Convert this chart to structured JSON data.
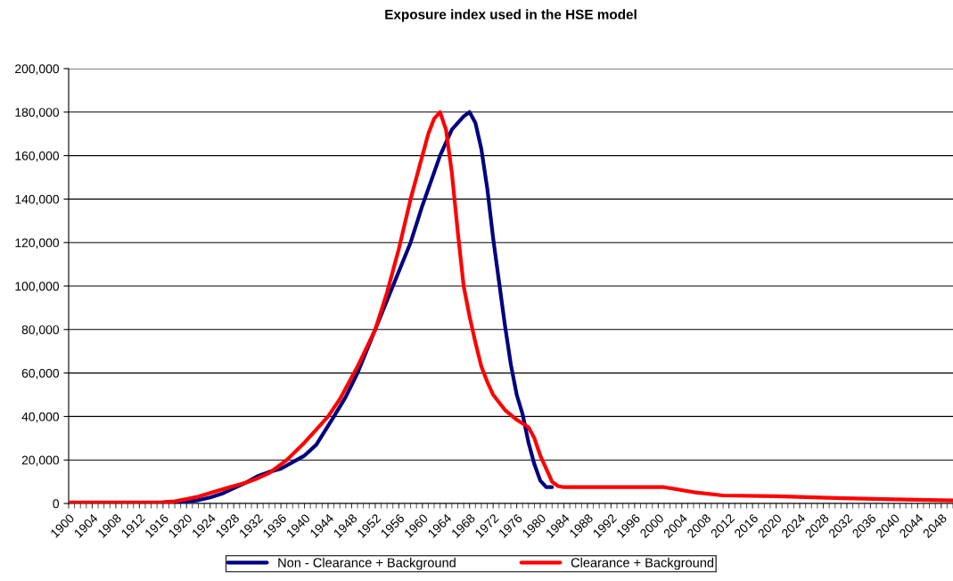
{
  "chart_data": {
    "type": "line",
    "title": "Exposure index used in the HSE model",
    "series": [
      {
        "name": "Non - Clearance + Background",
        "color": "#000080",
        "x": [
          1916,
          1918,
          1920,
          1922,
          1924,
          1926,
          1928,
          1930,
          1932,
          1934,
          1936,
          1938,
          1940,
          1942,
          1945,
          1947,
          1949,
          1952,
          1955,
          1958,
          1960,
          1963,
          1965,
          1967,
          1968,
          1969,
          1970,
          1971,
          1972,
          1973,
          1974,
          1975,
          1976,
          1977,
          1978,
          1979,
          1980,
          1981,
          1982
        ],
        "values": [
          500,
          600,
          900,
          1500,
          2800,
          4500,
          7000,
          9500,
          12500,
          14500,
          16000,
          19000,
          22000,
          27000,
          40000,
          49000,
          60000,
          80000,
          100000,
          120000,
          137000,
          160000,
          172000,
          178000,
          180000,
          175000,
          163000,
          145000,
          122000,
          102000,
          82000,
          64000,
          50000,
          41000,
          28000,
          18000,
          10500,
          7500,
          7500
        ]
      },
      {
        "name": "Clearance + Background",
        "color": "#ff0000",
        "x": [
          1900,
          1910,
          1916,
          1918,
          1920,
          1922,
          1924,
          1926,
          1928,
          1930,
          1932,
          1934,
          1937,
          1940,
          1942,
          1944,
          1946,
          1949,
          1952,
          1954,
          1956,
          1958,
          1960,
          1961,
          1962,
          1963,
          1964,
          1965,
          1966,
          1967,
          1968,
          1969,
          1970,
          1971,
          1972,
          1974,
          1976,
          1978,
          1979,
          1980,
          1981,
          1982,
          1983,
          1984,
          1990,
          2001,
          2006,
          2011,
          2020,
          2030,
          2040,
          2050
        ],
        "values": [
          500,
          500,
          600,
          1000,
          2000,
          3200,
          4800,
          6500,
          8000,
          9500,
          11500,
          14000,
          20000,
          28000,
          34000,
          40000,
          48000,
          63000,
          80000,
          97000,
          117000,
          140000,
          160000,
          170000,
          177000,
          180000,
          172000,
          152000,
          125000,
          100000,
          86000,
          74000,
          63000,
          56000,
          50000,
          43000,
          38500,
          35000,
          30000,
          22000,
          16000,
          10000,
          8000,
          7500,
          7500,
          7500,
          5200,
          3700,
          3300,
          2500,
          1900,
          1400
        ]
      }
    ],
    "xlim": [
      1900,
      2050
    ],
    "xticks": [
      {
        "value": 1900,
        "label": "1900"
      },
      {
        "value": 1904,
        "label": "1904"
      },
      {
        "value": 1908,
        "label": "1908"
      },
      {
        "value": 1912,
        "label": "1912"
      },
      {
        "value": 1916,
        "label": "1916"
      },
      {
        "value": 1920,
        "label": "1920"
      },
      {
        "value": 1924,
        "label": "1924"
      },
      {
        "value": 1928,
        "label": "1928"
      },
      {
        "value": 1932,
        "label": "1932"
      },
      {
        "value": 1936,
        "label": "1936"
      },
      {
        "value": 1940,
        "label": "1940"
      },
      {
        "value": 1944,
        "label": "1944"
      },
      {
        "value": 1948,
        "label": "1948"
      },
      {
        "value": 1952,
        "label": "1952"
      },
      {
        "value": 1956,
        "label": "1956"
      },
      {
        "value": 1960,
        "label": "1960"
      },
      {
        "value": 1964,
        "label": "1964"
      },
      {
        "value": 1968,
        "label": "1968"
      },
      {
        "value": 1972,
        "label": "1972"
      },
      {
        "value": 1976,
        "label": "1976"
      },
      {
        "value": 1980,
        "label": "1980"
      },
      {
        "value": 1984,
        "label": "1984"
      },
      {
        "value": 1988,
        "label": "1988"
      },
      {
        "value": 1992,
        "label": "1992"
      },
      {
        "value": 1996,
        "label": "1996"
      },
      {
        "value": 2000,
        "label": "2000"
      },
      {
        "value": 2004,
        "label": "2004"
      },
      {
        "value": 2008,
        "label": "2008"
      },
      {
        "value": 2012,
        "label": "2012"
      },
      {
        "value": 2016,
        "label": "2016"
      },
      {
        "value": 2020,
        "label": "2020"
      },
      {
        "value": 2024,
        "label": "2024"
      },
      {
        "value": 2028,
        "label": "2028"
      },
      {
        "value": 2032,
        "label": "2032"
      },
      {
        "value": 2036,
        "label": "2036"
      },
      {
        "value": 2040,
        "label": "2040"
      },
      {
        "value": 2044,
        "label": "2044"
      },
      {
        "value": 2048,
        "label": "2048"
      }
    ],
    "ylim": [
      0,
      200000
    ],
    "yticks": [
      0,
      {
        "value": 20000,
        "label": "20,000"
      },
      {
        "value": 40000,
        "label": "40,000"
      },
      {
        "value": 60000,
        "label": "60,000"
      },
      {
        "value": 80000,
        "label": "80,000"
      },
      {
        "value": 100000,
        "label": "100,000"
      },
      {
        "value": 120000,
        "label": "120,000"
      },
      {
        "value": 140000,
        "label": "140,000"
      },
      {
        "value": 160000,
        "label": "160,000"
      },
      {
        "value": 180000,
        "label": "180,000"
      },
      {
        "value": 200000,
        "label": "200,000"
      }
    ],
    "grid": "y",
    "legend": "bottom",
    "marker": "none",
    "line_style": "solid"
  }
}
